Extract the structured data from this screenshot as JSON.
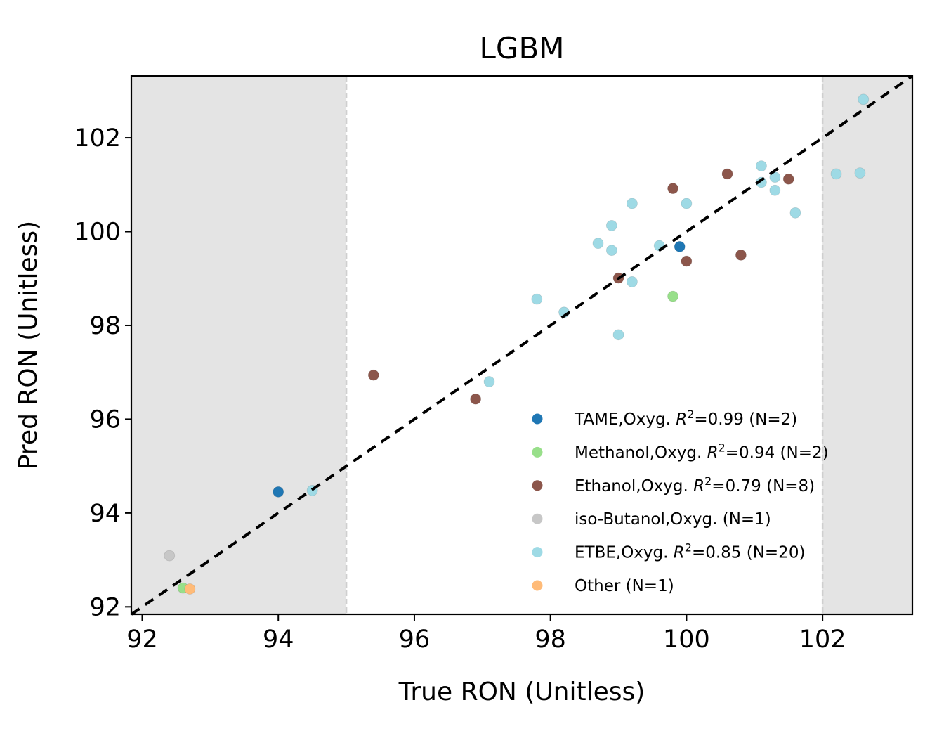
{
  "chart_data": {
    "type": "scatter",
    "title": "LGBM",
    "xlabel": "True RON (Unitless)",
    "ylabel": "Pred RON (Unitless)",
    "xlim": [
      91.84,
      103.32
    ],
    "ylim": [
      91.84,
      103.32
    ],
    "xticks": [
      92,
      94,
      96,
      98,
      100,
      102
    ],
    "yticks": [
      92,
      94,
      96,
      98,
      100,
      102
    ],
    "shaded_regions": [
      [
        91.84,
        95
      ],
      [
        102,
        103.32
      ]
    ],
    "shade_color": "#e4e4e4",
    "boundary_lines": [
      95,
      102
    ],
    "identity_line": true,
    "grid": false,
    "legend_position": "lower right",
    "series": [
      {
        "name": "TAME,Oxyg.",
        "r2": "0.99",
        "n": "2",
        "color": "#1f77b4",
        "points": [
          [
            94.0,
            94.45
          ],
          [
            99.9,
            99.68
          ]
        ]
      },
      {
        "name": "Methanol,Oxyg.",
        "r2": "0.94",
        "n": "2",
        "color": "#98df8a",
        "points": [
          [
            92.6,
            92.4
          ],
          [
            99.8,
            98.62
          ]
        ]
      },
      {
        "name": "Ethanol,Oxyg.",
        "r2": "0.79",
        "n": "8",
        "color": "#8c564b",
        "points": [
          [
            95.4,
            96.94
          ],
          [
            96.9,
            96.43
          ],
          [
            99.0,
            99.01
          ],
          [
            99.8,
            100.92
          ],
          [
            100.0,
            99.37
          ],
          [
            100.6,
            101.23
          ],
          [
            100.8,
            99.5
          ],
          [
            101.5,
            101.12
          ]
        ]
      },
      {
        "name": "iso-Butanol,Oxyg.",
        "r2": "",
        "n": "1",
        "color": "#c7c7c7",
        "points": [
          [
            92.4,
            93.09
          ]
        ]
      },
      {
        "name": "ETBE,Oxyg.",
        "r2": "0.85",
        "n": "20",
        "color": "#9edae5",
        "points": [
          [
            94.5,
            94.48
          ],
          [
            97.1,
            96.8
          ],
          [
            97.8,
            98.56
          ],
          [
            98.2,
            98.28
          ],
          [
            98.7,
            99.75
          ],
          [
            98.9,
            99.6
          ],
          [
            98.9,
            100.13
          ],
          [
            99.0,
            97.8
          ],
          [
            99.2,
            98.93
          ],
          [
            99.2,
            100.6
          ],
          [
            99.6,
            99.7
          ],
          [
            100.0,
            100.6
          ],
          [
            101.1,
            101.4
          ],
          [
            101.1,
            101.05
          ],
          [
            101.3,
            101.16
          ],
          [
            101.3,
            100.88
          ],
          [
            101.6,
            100.4
          ],
          [
            102.2,
            101.23
          ],
          [
            102.55,
            101.25
          ],
          [
            102.6,
            102.82
          ]
        ]
      },
      {
        "name": "Other",
        "r2": "",
        "n": "1",
        "color": "#ffbb78",
        "points": [
          [
            92.7,
            92.38
          ]
        ]
      }
    ]
  }
}
